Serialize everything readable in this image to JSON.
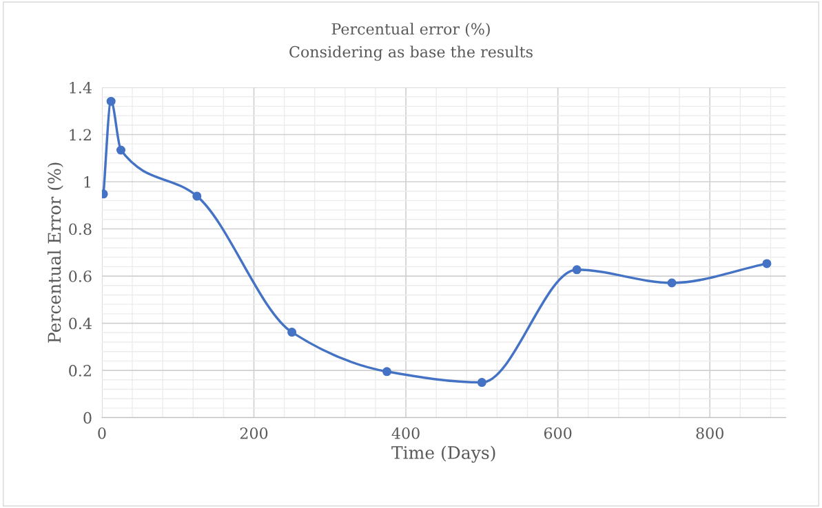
{
  "chart_data": {
    "type": "line",
    "title": "Percentual error (%)",
    "subtitle": "Considering as base the results",
    "xlabel": "Time (Days)",
    "ylabel": "Percentual Error (%)",
    "x": [
      2,
      12,
      25,
      125,
      250,
      375,
      500,
      625,
      750,
      875
    ],
    "series": [
      {
        "color": "#4472c4",
        "values": [
          0.948,
          1.341,
          1.134,
          0.939,
          0.362,
          0.195,
          0.149,
          0.627,
          0.571,
          0.653
        ]
      }
    ],
    "xlim": [
      0,
      900
    ],
    "xticks": [
      0,
      200,
      400,
      600,
      800
    ],
    "ylim": [
      0,
      1.4
    ],
    "yticks": [
      0,
      0.2,
      0.4,
      0.6,
      0.8,
      1,
      1.2,
      1.4
    ],
    "grid": true,
    "legend": false,
    "marker": "circle",
    "line_style": "solid"
  }
}
